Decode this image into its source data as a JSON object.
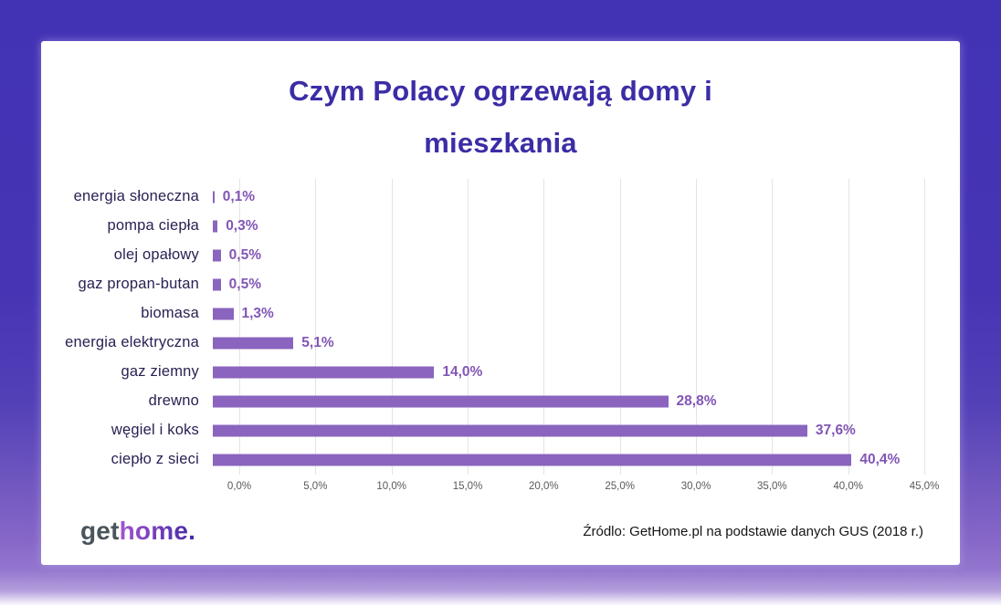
{
  "title": "Czym Polacy ogrzewają domy i mieszkania",
  "chart_data": {
    "type": "bar",
    "orientation": "horizontal",
    "title": "Czym Polacy ogrzewają domy i mieszkania",
    "categories": [
      "energia słoneczna",
      "pompa ciepła",
      "olej opałowy",
      "gaz propan-butan",
      "biomasa",
      "energia elektryczna",
      "gaz ziemny",
      "drewno",
      "węgiel i koks",
      "ciepło z sieci"
    ],
    "values": [
      0.1,
      0.3,
      0.5,
      0.5,
      1.3,
      5.1,
      14.0,
      28.8,
      37.6,
      40.4
    ],
    "value_labels": [
      "0,1%",
      "0,3%",
      "0,5%",
      "0,5%",
      "1,3%",
      "5,1%",
      "14,0%",
      "28,8%",
      "37,6%",
      "40,4%"
    ],
    "xlabel": "",
    "ylabel": "",
    "xlim": [
      0,
      45
    ],
    "x_tick_values": [
      0,
      5,
      10,
      15,
      20,
      25,
      30,
      35,
      40,
      45
    ],
    "x_tick_labels": [
      "0,0%",
      "5,0%",
      "10,0%",
      "15,0%",
      "20,0%",
      "25,0%",
      "30,0%",
      "35,0%",
      "40,0%",
      "45,0%"
    ],
    "grid": true,
    "legend": false
  },
  "footer": {
    "logo_part_get": "get",
    "logo_part_home": "home",
    "logo_part_dot": ".",
    "source": "Źródlo: GetHome.pl na podstawie danych GUS (2018 r.)"
  },
  "colors": {
    "frame_top": "#4233b5",
    "frame_bottom": "#9376ce",
    "card_background": "#ffffff",
    "title_text": "#3b2da6",
    "category_label": "#2a2153",
    "bar_fill": "#8a64be",
    "value_label": "#8256b5",
    "tick_label": "#595959",
    "gridline": "#e4e4e6"
  }
}
